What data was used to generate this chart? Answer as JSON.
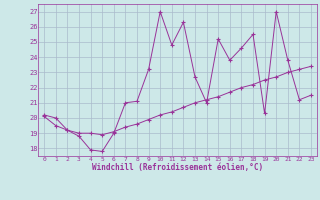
{
  "xlabel": "Windchill (Refroidissement éolien,°C)",
  "background_color": "#cde8e8",
  "line_color": "#993399",
  "grid_color": "#aabbcc",
  "ylim": [
    17.5,
    27.5
  ],
  "xlim": [
    -0.5,
    23.5
  ],
  "yticks": [
    18,
    19,
    20,
    21,
    22,
    23,
    24,
    25,
    26,
    27
  ],
  "xticks": [
    0,
    1,
    2,
    3,
    4,
    5,
    6,
    7,
    8,
    9,
    10,
    11,
    12,
    13,
    14,
    15,
    16,
    17,
    18,
    19,
    20,
    21,
    22,
    23
  ],
  "series1_x": [
    0,
    1,
    2,
    3,
    4,
    5,
    6,
    7,
    8,
    9,
    10,
    11,
    12,
    13,
    14,
    15,
    16,
    17,
    18,
    19,
    20,
    21,
    22,
    23
  ],
  "series1_y": [
    20.2,
    20.0,
    19.2,
    18.8,
    17.9,
    17.8,
    19.0,
    21.0,
    21.1,
    23.2,
    27.0,
    24.8,
    26.3,
    22.7,
    21.0,
    25.2,
    23.8,
    24.6,
    25.5,
    20.3,
    27.0,
    23.8,
    21.2,
    21.5
  ],
  "series2_x": [
    0,
    1,
    2,
    3,
    4,
    5,
    6,
    7,
    8,
    9,
    10,
    11,
    12,
    13,
    14,
    15,
    16,
    17,
    18,
    19,
    20,
    21,
    22,
    23
  ],
  "series2_y": [
    20.1,
    19.5,
    19.2,
    19.0,
    19.0,
    18.9,
    19.1,
    19.4,
    19.6,
    19.9,
    20.2,
    20.4,
    20.7,
    21.0,
    21.2,
    21.4,
    21.7,
    22.0,
    22.2,
    22.5,
    22.7,
    23.0,
    23.2,
    23.4
  ]
}
